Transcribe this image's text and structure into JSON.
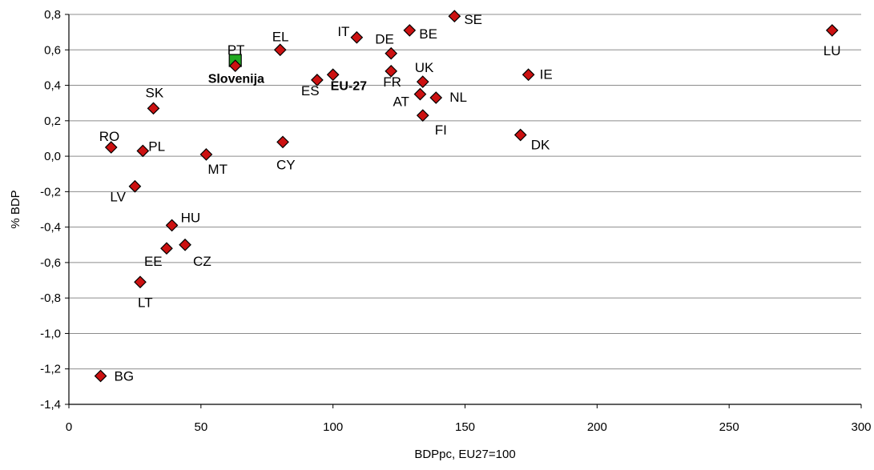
{
  "chart_data": {
    "type": "scatter",
    "xlabel": "BDPpc, EU27=100",
    "ylabel": "% BDP",
    "xlim": [
      0,
      300
    ],
    "ylim": [
      -1.4,
      0.8
    ],
    "x_ticks": [
      0,
      50,
      100,
      150,
      200,
      250,
      300
    ],
    "x_tick_labels": [
      "0",
      "50",
      "100",
      "150",
      "200",
      "250",
      "300"
    ],
    "y_ticks": [
      0.8,
      0.6,
      0.4,
      0.2,
      0.0,
      -0.2,
      -0.4,
      -0.6,
      -0.8,
      -1.0,
      -1.2,
      -1.4
    ],
    "y_tick_labels": [
      "0,8",
      "0,6",
      "0,4",
      "0,2",
      "0,0",
      "-0,2",
      "-0,4",
      "-0,6",
      "-0,8",
      "-1,0",
      "-1,2",
      "-1,4"
    ],
    "grid": "horizontal",
    "marker_color": "#cc1111",
    "highlight_color": "#22aa22",
    "points": [
      {
        "label": "SE",
        "x": 146,
        "y": 0.79
      },
      {
        "label": "BE",
        "x": 129,
        "y": 0.71
      },
      {
        "label": "IT",
        "x": 109,
        "y": 0.67
      },
      {
        "label": "EL",
        "x": 80,
        "y": 0.6
      },
      {
        "label": "DE",
        "x": 122,
        "y": 0.58
      },
      {
        "label": "PT",
        "x": 63,
        "y": 0.51
      },
      {
        "label": "FR",
        "x": 122,
        "y": 0.48
      },
      {
        "label": "EU-27",
        "x": 100,
        "y": 0.46,
        "bold": true
      },
      {
        "label": "ES",
        "x": 94,
        "y": 0.43
      },
      {
        "label": "UK",
        "x": 134,
        "y": 0.42
      },
      {
        "label": "AT",
        "x": 133,
        "y": 0.35
      },
      {
        "label": "NL",
        "x": 139,
        "y": 0.33
      },
      {
        "label": "FI",
        "x": 134,
        "y": 0.23
      },
      {
        "label": "SK",
        "x": 32,
        "y": 0.27
      },
      {
        "label": "IE",
        "x": 174,
        "y": 0.46
      },
      {
        "label": "DK",
        "x": 171,
        "y": 0.12
      },
      {
        "label": "LU",
        "x": 289,
        "y": 0.71
      },
      {
        "label": "RO",
        "x": 16,
        "y": 0.05
      },
      {
        "label": "PL",
        "x": 28,
        "y": 0.03
      },
      {
        "label": "MT",
        "x": 52,
        "y": 0.01
      },
      {
        "label": "CY",
        "x": 81,
        "y": 0.08
      },
      {
        "label": "LV",
        "x": 25,
        "y": -0.17
      },
      {
        "label": "HU",
        "x": 39,
        "y": -0.39
      },
      {
        "label": "EE",
        "x": 37,
        "y": -0.52
      },
      {
        "label": "CZ",
        "x": 44,
        "y": -0.5
      },
      {
        "label": "LT",
        "x": 27,
        "y": -0.71
      },
      {
        "label": "BG",
        "x": 12,
        "y": -1.24
      }
    ],
    "highlight": {
      "label": "Slovenija",
      "x": 63,
      "y": 0.54,
      "bold": true
    }
  }
}
